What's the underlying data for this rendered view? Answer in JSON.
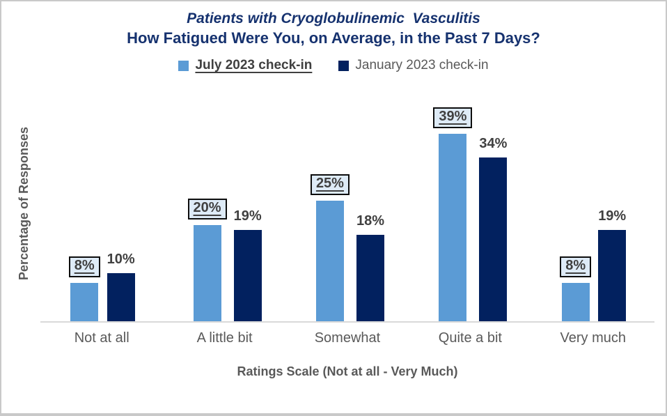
{
  "title": {
    "line1": "Patients with Cryoglobulinemic  Vasculitis",
    "line2": "How Fatigued Were You, on Average, in the Past 7 Days?"
  },
  "legend": {
    "items": [
      {
        "label": "July 2023 check-in",
        "color": "#5b9bd5",
        "emphasized": true
      },
      {
        "label": "January 2023 check-in",
        "color": "#02215f",
        "emphasized": false
      }
    ]
  },
  "axes": {
    "y_title": "Percentage of Responses",
    "x_title": "Ratings Scale (Not at all - Very Much)"
  },
  "chart_data": {
    "type": "bar",
    "title": "Patients with Cryoglobulinemic Vasculitis",
    "subtitle": "How Fatigued Were You, on Average, in the Past 7 Days?",
    "categories": [
      "Not at all",
      "A little bit",
      "Somewhat",
      "Quite a bit",
      "Very much"
    ],
    "series": [
      {
        "name": "July 2023 check-in",
        "color": "#5b9bd5",
        "values": [
          8,
          20,
          25,
          39,
          8
        ],
        "data_labels": [
          "8%",
          "20%",
          "25%",
          "39%",
          "8%"
        ],
        "label_style": "boxed-underlined"
      },
      {
        "name": "January 2023 check-in",
        "color": "#02215f",
        "values": [
          10,
          19,
          18,
          34,
          19
        ],
        "data_labels": [
          "10%",
          "19%",
          "18%",
          "34%",
          "19%"
        ],
        "label_style": "plain"
      }
    ],
    "xlabel": "Ratings Scale (Not at all - Very Much)",
    "ylabel": "Percentage of Responses",
    "ylim": [
      0,
      40
    ],
    "grid": false,
    "legend_position": "top",
    "y_axis_ticks_visible": false
  },
  "colors": {
    "title_text": "#16326f",
    "axis_text": "#595959",
    "data_label_text": "#404040",
    "label_box_bg": "#deebf7",
    "label_box_border": "#0d0d0d",
    "axis_line": "#d9d9d9",
    "frame_border": "#c9c9c9",
    "background": "#ffffff"
  }
}
